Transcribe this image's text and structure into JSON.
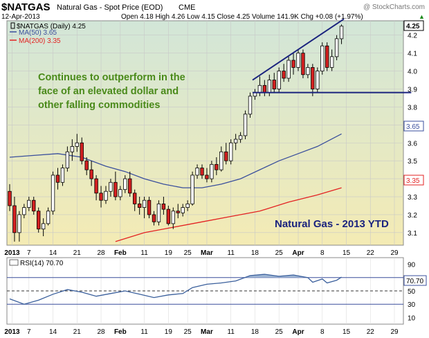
{
  "header": {
    "symbol": "$NATGAS",
    "name": "Natural Gas - Spot Price (EOD)",
    "exchange": "CME",
    "date": "12-Apr-2013",
    "watermark": "@ StockCharts.com",
    "ohlc": "Open 4.18  High 4.26  Low 4.15  Close 4.25  Volume 141.9K  Chg +0.08 (+1.97%)",
    "chg_arrow": "▲"
  },
  "legend": {
    "price": "$NATGAS (Daily) 4.25",
    "ma50": "MA(50) 3.65",
    "ma200": "MA(200) 3.35"
  },
  "annotations": {
    "comment_lines": [
      "Continues to outperform in the",
      "face of an elevated dollar and",
      "other falling commodities"
    ],
    "title": "Natural Gas - 2013 YTD"
  },
  "badges": {
    "close": "4.25",
    "ma50": "3.65",
    "ma200": "3.35",
    "rsi": "70.70"
  },
  "colors": {
    "bg_top": "#d2e6d8",
    "bg_bottom": "#f4ebb4",
    "up": "#ffffff",
    "down": "#d32020",
    "ma50": "#3a4f9c",
    "ma200": "#e32222",
    "trendline": "#1a237e",
    "comment": "#4a8a1a",
    "rsi_fill": "#9fb6d4"
  },
  "x_axis_labels": [
    {
      "label": "2013",
      "d": 0.5,
      "bold": true
    },
    {
      "label": "7",
      "d": 4
    },
    {
      "label": "14",
      "d": 9
    },
    {
      "label": "21",
      "d": 14
    },
    {
      "label": "28",
      "d": 19
    },
    {
      "label": "Feb",
      "d": 23,
      "bold": true
    },
    {
      "label": "11",
      "d": 28
    },
    {
      "label": "19",
      "d": 33
    },
    {
      "label": "25",
      "d": 37
    },
    {
      "label": "Mar",
      "d": 41,
      "bold": true
    },
    {
      "label": "11",
      "d": 46
    },
    {
      "label": "18",
      "d": 51
    },
    {
      "label": "25",
      "d": 56
    },
    {
      "label": "Apr",
      "d": 60,
      "bold": true
    },
    {
      "label": "8",
      "d": 65
    },
    {
      "label": "15",
      "d": 70
    },
    {
      "label": "22",
      "d": 75
    },
    {
      "label": "29",
      "d": 80
    }
  ],
  "chart_data": {
    "type": "candlestick",
    "price_axis": {
      "ticks": [
        3.1,
        3.2,
        3.3,
        3.4,
        3.5,
        3.6,
        3.7,
        3.8,
        3.9,
        4.0,
        4.1,
        4.2
      ],
      "range": [
        3.03,
        4.28
      ]
    },
    "rsi_axis": {
      "ticks": [
        10,
        30,
        50,
        70,
        90
      ],
      "range": [
        0,
        100
      ],
      "levels": [
        30,
        50,
        70
      ]
    },
    "candles": [
      [
        3.33,
        3.37,
        3.22,
        3.25
      ],
      [
        3.25,
        3.3,
        3.05,
        3.1
      ],
      [
        3.1,
        3.22,
        3.05,
        3.2
      ],
      [
        3.2,
        3.26,
        3.18,
        3.24
      ],
      [
        3.24,
        3.3,
        3.22,
        3.28
      ],
      [
        3.28,
        3.3,
        3.2,
        3.22
      ],
      [
        3.22,
        3.24,
        3.1,
        3.12
      ],
      [
        3.12,
        3.18,
        3.08,
        3.15
      ],
      [
        3.15,
        3.24,
        3.14,
        3.22
      ],
      [
        3.22,
        3.44,
        3.2,
        3.42
      ],
      [
        3.42,
        3.46,
        3.34,
        3.38
      ],
      [
        3.38,
        3.48,
        3.36,
        3.46
      ],
      [
        3.46,
        3.58,
        3.44,
        3.55
      ],
      [
        3.55,
        3.62,
        3.5,
        3.58
      ],
      [
        3.58,
        3.65,
        3.55,
        3.6
      ],
      [
        3.6,
        3.63,
        3.48,
        3.5
      ],
      [
        3.5,
        3.52,
        3.42,
        3.45
      ],
      [
        3.45,
        3.5,
        3.36,
        3.4
      ],
      [
        3.4,
        3.42,
        3.28,
        3.32
      ],
      [
        3.32,
        3.36,
        3.24,
        3.28
      ],
      [
        3.28,
        3.36,
        3.26,
        3.33
      ],
      [
        3.33,
        3.4,
        3.3,
        3.38
      ],
      [
        3.38,
        3.44,
        3.28,
        3.3
      ],
      [
        3.3,
        3.36,
        3.28,
        3.34
      ],
      [
        3.34,
        3.42,
        3.32,
        3.4
      ],
      [
        3.4,
        3.44,
        3.3,
        3.32
      ],
      [
        3.32,
        3.34,
        3.22,
        3.26
      ],
      [
        3.26,
        3.3,
        3.2,
        3.24
      ],
      [
        3.24,
        3.3,
        3.18,
        3.28
      ],
      [
        3.28,
        3.3,
        3.18,
        3.2
      ],
      [
        3.2,
        3.22,
        3.14,
        3.16
      ],
      [
        3.16,
        3.28,
        3.14,
        3.26
      ],
      [
        3.26,
        3.3,
        3.2,
        3.23
      ],
      [
        3.23,
        3.25,
        3.14,
        3.15
      ],
      [
        3.15,
        3.24,
        3.12,
        3.22
      ],
      [
        3.22,
        3.26,
        3.18,
        3.21
      ],
      [
        3.21,
        3.26,
        3.19,
        3.24
      ],
      [
        3.24,
        3.28,
        3.22,
        3.26
      ],
      [
        3.26,
        3.44,
        3.25,
        3.42
      ],
      [
        3.42,
        3.48,
        3.4,
        3.46
      ],
      [
        3.46,
        3.48,
        3.4,
        3.42
      ],
      [
        3.42,
        3.46,
        3.38,
        3.4
      ],
      [
        3.4,
        3.5,
        3.38,
        3.48
      ],
      [
        3.48,
        3.52,
        3.42,
        3.45
      ],
      [
        3.45,
        3.58,
        3.44,
        3.55
      ],
      [
        3.55,
        3.6,
        3.48,
        3.5
      ],
      [
        3.5,
        3.62,
        3.48,
        3.6
      ],
      [
        3.6,
        3.65,
        3.56,
        3.62
      ],
      [
        3.62,
        3.66,
        3.6,
        3.64
      ],
      [
        3.64,
        3.78,
        3.62,
        3.76
      ],
      [
        3.76,
        3.88,
        3.74,
        3.86
      ],
      [
        3.86,
        3.9,
        3.84,
        3.88
      ],
      [
        3.88,
        3.97,
        3.86,
        3.92
      ],
      [
        3.92,
        3.95,
        3.86,
        3.88
      ],
      [
        3.88,
        3.98,
        3.86,
        3.95
      ],
      [
        3.95,
        3.99,
        3.88,
        3.9
      ],
      [
        3.9,
        4.02,
        3.88,
        4.0
      ],
      [
        4.0,
        4.04,
        3.94,
        3.96
      ],
      [
        3.96,
        4.08,
        3.94,
        4.06
      ],
      [
        4.06,
        4.1,
        3.98,
        4.02
      ],
      [
        4.02,
        4.12,
        4.0,
        4.1
      ],
      [
        4.1,
        4.12,
        3.96,
        3.98
      ],
      [
        3.98,
        4.04,
        3.96,
        4.02
      ],
      [
        4.02,
        4.04,
        3.86,
        3.9
      ],
      [
        3.9,
        4.02,
        3.88,
        4.0
      ],
      [
        4.0,
        4.16,
        3.98,
        4.14
      ],
      [
        4.14,
        4.16,
        4.0,
        4.02
      ],
      [
        4.02,
        4.12,
        4.0,
        4.08
      ],
      [
        4.08,
        4.2,
        4.06,
        4.18
      ],
      [
        4.18,
        4.26,
        4.15,
        4.25
      ]
    ],
    "ma50": [
      [
        0,
        3.52
      ],
      [
        5,
        3.53
      ],
      [
        10,
        3.54
      ],
      [
        15,
        3.52
      ],
      [
        20,
        3.47
      ],
      [
        24,
        3.44
      ],
      [
        28,
        3.4
      ],
      [
        32,
        3.37
      ],
      [
        36,
        3.35
      ],
      [
        40,
        3.35
      ],
      [
        44,
        3.37
      ],
      [
        48,
        3.4
      ],
      [
        52,
        3.45
      ],
      [
        56,
        3.5
      ],
      [
        60,
        3.54
      ],
      [
        64,
        3.58
      ],
      [
        69,
        3.65
      ]
    ],
    "ma200": [
      [
        22,
        3.05
      ],
      [
        28,
        3.1
      ],
      [
        34,
        3.13
      ],
      [
        40,
        3.16
      ],
      [
        46,
        3.19
      ],
      [
        52,
        3.22
      ],
      [
        58,
        3.27
      ],
      [
        64,
        3.31
      ],
      [
        69,
        3.35
      ]
    ],
    "trendlines": [
      {
        "x1": 50.5,
        "y1": 3.95,
        "x2": 69.5,
        "y2": 4.29
      },
      {
        "x1": 50.5,
        "y1": 3.88,
        "x2": 83.5,
        "y2": 3.88
      }
    ],
    "rsi": [
      [
        0,
        38
      ],
      [
        3,
        30
      ],
      [
        6,
        36
      ],
      [
        9,
        45
      ],
      [
        12,
        52
      ],
      [
        15,
        48
      ],
      [
        18,
        42
      ],
      [
        21,
        46
      ],
      [
        24,
        50
      ],
      [
        27,
        45
      ],
      [
        30,
        40
      ],
      [
        33,
        44
      ],
      [
        36,
        46
      ],
      [
        38,
        55
      ],
      [
        41,
        60
      ],
      [
        44,
        62
      ],
      [
        47,
        65
      ],
      [
        50,
        73
      ],
      [
        53,
        75
      ],
      [
        56,
        72
      ],
      [
        59,
        74
      ],
      [
        62,
        70
      ],
      [
        63,
        63
      ],
      [
        65,
        68
      ],
      [
        66,
        62
      ],
      [
        68,
        66
      ],
      [
        69,
        70.7
      ]
    ]
  }
}
